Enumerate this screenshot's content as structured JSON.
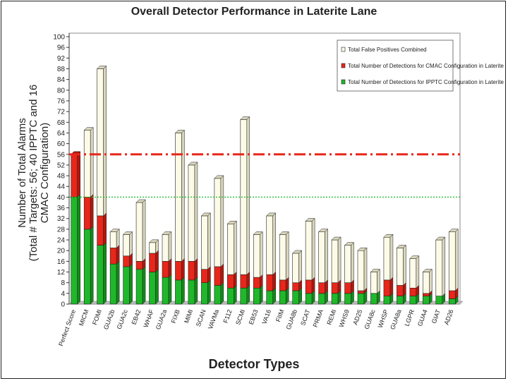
{
  "chart_data": {
    "type": "bar",
    "stacked": true,
    "title": "Overall Detector Performance in Laterite Lane",
    "xlabel": "Detector Types",
    "ylabel_lines": [
      "Number of Total Alarms",
      "(Total # Targets: 56; 40 IPPTC and 16",
      "CMAC Configuration)"
    ],
    "ylim": [
      0,
      100
    ],
    "yticks": [
      0,
      4,
      8,
      12,
      16,
      20,
      24,
      28,
      32,
      36,
      40,
      44,
      48,
      52,
      56,
      60,
      64,
      68,
      72,
      76,
      80,
      84,
      88,
      92,
      96,
      100
    ],
    "categories": [
      "Perfect Score",
      "MICM",
      "FOMI",
      "GUA2b",
      "GUA2c",
      "EB42",
      "WHAF",
      "GUA2a",
      "FIXB",
      "MIMI",
      "SCAN",
      "VAVMa",
      "F112",
      "SCMI",
      "EB53",
      "VA16",
      "FIIM",
      "GUA8b",
      "SCAT",
      "PRMA",
      "REMI",
      "WHS9",
      "AD25",
      "GUA8c",
      "WHSP",
      "GUA8a",
      "LGPR",
      "GUA4",
      "GIAT",
      "AD26"
    ],
    "series": [
      {
        "name": "Total Number of Detections for IPPTC Configuration in Laterite",
        "color": "#1fb82a",
        "values": [
          40,
          28,
          22,
          15,
          14,
          13,
          12,
          10,
          9,
          9,
          8,
          7,
          6,
          6,
          6,
          5,
          5,
          5,
          4,
          4,
          4,
          4,
          4,
          4,
          3,
          3,
          3,
          3,
          3,
          2
        ]
      },
      {
        "name": "Total Number of Detections for CMAC Configuration in Laterite",
        "color": "#e8261a",
        "values": [
          16,
          12,
          11,
          6,
          4,
          3,
          7,
          6,
          7,
          7,
          5,
          7,
          5,
          5,
          4,
          6,
          4,
          3,
          5,
          4,
          4,
          4,
          1,
          0,
          6,
          4,
          3,
          1,
          0,
          3
        ]
      },
      {
        "name": "Total False Positives Combined",
        "color": "#fdfbe8",
        "values": [
          0,
          25,
          55,
          6,
          8,
          22,
          4,
          10,
          48,
          36,
          20,
          33,
          19,
          58,
          16,
          22,
          17,
          11,
          22,
          19,
          16,
          14,
          15,
          8,
          16,
          14,
          11,
          8,
          21,
          22
        ]
      }
    ],
    "reference_lines": [
      {
        "name": "total-targets-line",
        "value": 56,
        "color": "#e8261a",
        "style": "dash-dot"
      },
      {
        "name": "ipptc-targets-line",
        "value": 40,
        "color": "#1fb82a",
        "style": "dotted"
      }
    ],
    "legend_position": "top-right",
    "legend_order": [
      2,
      1,
      0
    ]
  }
}
